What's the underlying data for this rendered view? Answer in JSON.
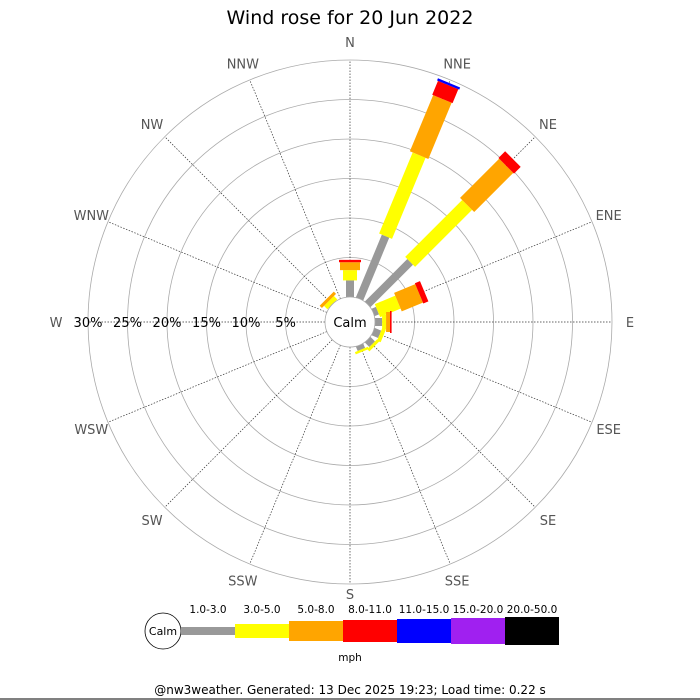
{
  "chart_data": {
    "type": "wind-rose",
    "title": "Wind rose for 20 Jun 2022",
    "directions": [
      "N",
      "NNE",
      "NE",
      "ENE",
      "E",
      "ESE",
      "SE",
      "SSE",
      "S",
      "SSW",
      "SW",
      "WSW",
      "W",
      "WNW",
      "NW",
      "NNW"
    ],
    "radial_ticks": [
      "5%",
      "10%",
      "15%",
      "20%",
      "25%",
      "30%"
    ],
    "radial_tick_values": [
      5,
      10,
      15,
      20,
      25,
      30
    ],
    "radial_max": 30,
    "calm_label": "Calm",
    "speed_unit": "mph",
    "speed_bins": [
      {
        "label": "1.0-3.0",
        "color": "#999999"
      },
      {
        "label": "3.0-5.0",
        "color": "#ffff00"
      },
      {
        "label": "5.0-8.0",
        "color": "#ffa500"
      },
      {
        "label": "8.0-11.0",
        "color": "#ff0000"
      },
      {
        "label": "11.0-15.0",
        "color": "#0000ff"
      },
      {
        "label": "15.0-20.0",
        "color": "#a020f0"
      },
      {
        "label": "20.0-50.0",
        "color": "#000000"
      }
    ],
    "frequencies_percent": {
      "N": [
        2.1,
        1.3,
        1.0,
        0.3,
        0,
        0,
        0
      ],
      "NNE": [
        8.6,
        11.1,
        7.7,
        1.9,
        0.3,
        0,
        0
      ],
      "NE": [
        7.6,
        10.2,
        7.0,
        1.2,
        0,
        0,
        0
      ],
      "ENE": [
        0.6,
        2.8,
        2.9,
        0.7,
        0,
        0,
        0
      ],
      "E": [
        0.9,
        0.5,
        0.5,
        0.2,
        0,
        0,
        0
      ],
      "ESE": [
        0.9,
        0.5,
        0,
        0,
        0,
        0,
        0
      ],
      "SE": [
        0.8,
        0.4,
        0,
        0,
        0,
        0,
        0
      ],
      "SSE": [
        0.6,
        0.3,
        0,
        0,
        0,
        0,
        0
      ],
      "S": [
        0,
        0,
        0,
        0,
        0,
        0,
        0
      ],
      "SSW": [
        0,
        0,
        0,
        0,
        0,
        0,
        0
      ],
      "SW": [
        0,
        0,
        0,
        0,
        0,
        0,
        0
      ],
      "WSW": [
        0,
        0,
        0,
        0,
        0,
        0,
        0
      ],
      "W": [
        0,
        0,
        0,
        0,
        0,
        0,
        0
      ],
      "WNW": [
        0,
        0,
        0,
        0,
        0,
        0,
        0
      ],
      "NW": [
        0,
        0.6,
        0.4,
        0,
        0,
        0,
        0
      ],
      "NNW": [
        0,
        0,
        0,
        0,
        0,
        0,
        0
      ]
    }
  },
  "footer": "@nw3weather. Generated: 13 Dec 2025 19:23; Load time: 0.22 s"
}
